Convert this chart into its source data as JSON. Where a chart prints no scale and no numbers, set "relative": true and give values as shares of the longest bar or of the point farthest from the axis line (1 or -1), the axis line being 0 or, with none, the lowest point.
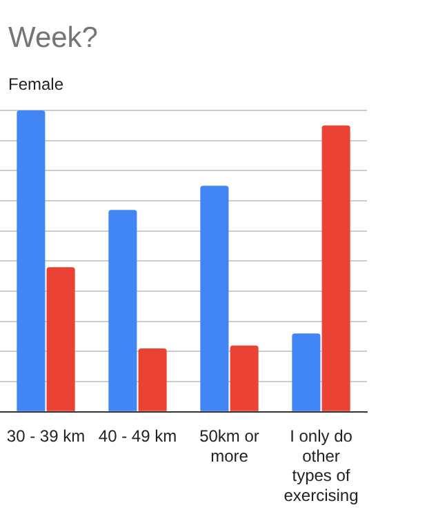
{
  "chart_data": {
    "type": "bar",
    "title": "Week?",
    "subtitle": "Female",
    "categories": [
      "30 - 39 km",
      "40 - 49 km",
      "50km or more",
      "I only do other types of exercising"
    ],
    "relative": true,
    "grid": "y",
    "series": [
      {
        "color": "#4285f4",
        "values": [
          1,
          0.67,
          0.75,
          0.26
        ]
      },
      {
        "color": "#ea4335",
        "values": [
          0.48,
          0.21,
          0.22,
          0.95
        ]
      }
    ]
  }
}
